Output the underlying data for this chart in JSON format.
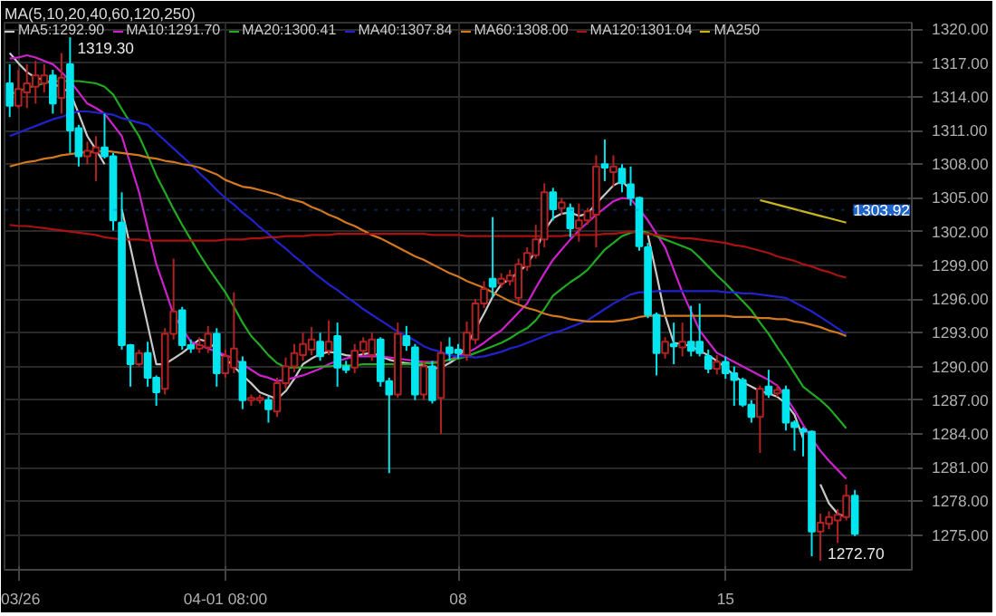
{
  "chart_data": {
    "type": "candlestick",
    "legend_title": "MA(5,10,20,40,60,120,250)",
    "categories": [
      null,
      "03/26",
      null,
      null,
      null,
      null,
      null,
      null,
      null,
      null,
      null,
      null,
      null,
      null,
      null,
      null,
      null,
      null,
      null,
      null,
      null,
      null,
      null,
      null,
      null,
      "04-01 08:00",
      null,
      null,
      null,
      null,
      null,
      null,
      null,
      null,
      null,
      null,
      null,
      null,
      null,
      null,
      null,
      null,
      null,
      null,
      null,
      null,
      null,
      null,
      null,
      null,
      null,
      null,
      "08",
      null,
      null,
      null,
      null,
      null,
      null,
      null,
      null,
      null,
      null,
      null,
      null,
      null,
      null,
      null,
      null,
      null,
      null,
      null,
      null,
      null,
      null,
      null,
      null,
      null,
      null,
      null,
      null,
      null,
      null,
      "15",
      null,
      null,
      null,
      null,
      null,
      null,
      null,
      null,
      null,
      null,
      null,
      null,
      null,
      null,
      null
    ],
    "ohlc": [
      [
        1315.2,
        1316.9,
        1312.2,
        1313.2
      ],
      [
        1313.2,
        1316.4,
        1313.0,
        1314.7
      ],
      [
        1314.4,
        1316.9,
        1313.0,
        1315.2
      ],
      [
        1314.9,
        1317.2,
        1313.4,
        1315.9
      ],
      [
        1315.2,
        1316.9,
        1314.4,
        1315.9
      ],
      [
        1315.9,
        1316.4,
        1312.5,
        1313.4
      ],
      [
        1313.9,
        1317.9,
        1312.5,
        1315.7
      ],
      [
        1316.9,
        1319.3,
        1309.0,
        1311.0
      ],
      [
        1311.2,
        1311.5,
        1307.8,
        1308.7
      ],
      [
        1308.7,
        1310.0,
        1308.0,
        1309.2
      ],
      [
        1309.0,
        1310.5,
        1306.5,
        1309.5
      ],
      [
        1309.5,
        1312.5,
        1308.5,
        1308.7
      ],
      [
        1308.7,
        1309.0,
        1302.1,
        1303.0
      ],
      [
        1302.8,
        1305.5,
        1291.5,
        1291.9
      ],
      [
        1291.9,
        1292.0,
        1288.2,
        1290.2
      ],
      [
        1290.2,
        1291.5,
        1290.0,
        1291.2
      ],
      [
        1291.2,
        1292.2,
        1288.2,
        1289.0
      ],
      [
        1289.0,
        1289.2,
        1286.5,
        1287.7
      ],
      [
        1288.0,
        1293.4,
        1287.5,
        1292.9
      ],
      [
        1292.9,
        1299.6,
        1292.4,
        1294.9
      ],
      [
        1295.0,
        1295.3,
        1291.5,
        1291.9
      ],
      [
        1291.9,
        1292.4,
        1291.2,
        1291.6
      ],
      [
        1291.6,
        1292.6,
        1291.2,
        1291.9
      ],
      [
        1291.7,
        1293.6,
        1291.2,
        1292.9
      ],
      [
        1292.9,
        1293.4,
        1288.2,
        1289.4
      ],
      [
        1289.4,
        1291.5,
        1289.0,
        1290.9
      ],
      [
        1289.9,
        1296.6,
        1289.4,
        1291.6
      ],
      [
        1290.4,
        1290.9,
        1286.2,
        1287.0
      ],
      [
        1287.0,
        1287.5,
        1286.5,
        1287.2
      ],
      [
        1287.0,
        1287.5,
        1286.7,
        1287.2
      ],
      [
        1287.0,
        1287.3,
        1285.0,
        1286.2
      ],
      [
        1286.0,
        1289.0,
        1285.5,
        1288.5
      ],
      [
        1288.5,
        1290.8,
        1288.0,
        1290.0
      ],
      [
        1290.0,
        1292.0,
        1289.5,
        1291.2
      ],
      [
        1291.0,
        1293.0,
        1290.5,
        1292.0
      ],
      [
        1291.5,
        1293.5,
        1291.0,
        1292.4
      ],
      [
        1292.2,
        1293.0,
        1290.5,
        1290.9
      ],
      [
        1291.4,
        1294.1,
        1291.0,
        1292.2
      ],
      [
        1292.7,
        1293.9,
        1288.2,
        1289.9
      ],
      [
        1290.0,
        1290.5,
        1289.4,
        1289.7
      ],
      [
        1289.9,
        1292.0,
        1289.4,
        1291.4
      ],
      [
        1291.4,
        1292.6,
        1291.0,
        1292.2
      ],
      [
        1291.0,
        1293.0,
        1290.5,
        1292.4
      ],
      [
        1292.4,
        1292.6,
        1288.2,
        1288.7
      ],
      [
        1288.7,
        1289.0,
        1280.5,
        1287.5
      ],
      [
        1287.5,
        1293.9,
        1287.2,
        1292.9
      ],
      [
        1292.7,
        1293.6,
        1291.4,
        1291.9
      ],
      [
        1291.7,
        1292.0,
        1287.0,
        1287.5
      ],
      [
        1287.5,
        1290.5,
        1287.0,
        1290.0
      ],
      [
        1290.0,
        1290.5,
        1286.7,
        1287.0
      ],
      [
        1287.2,
        1292.2,
        1284.0,
        1291.2
      ],
      [
        1291.7,
        1292.6,
        1290.5,
        1291.2
      ],
      [
        1291.5,
        1292.0,
        1290.7,
        1291.2
      ],
      [
        1291.0,
        1294.0,
        1290.5,
        1293.0
      ],
      [
        1292.4,
        1296.0,
        1292.0,
        1295.6
      ],
      [
        1295.6,
        1297.6,
        1295.2,
        1296.9
      ],
      [
        1297.8,
        1303.3,
        1296.1,
        1297.1
      ],
      [
        1297.4,
        1298.3,
        1297.0,
        1297.8
      ],
      [
        1297.6,
        1298.6,
        1297.2,
        1298.1
      ],
      [
        1296.1,
        1299.6,
        1295.6,
        1299.1
      ],
      [
        1298.9,
        1300.6,
        1298.5,
        1300.1
      ],
      [
        1299.9,
        1302.6,
        1299.6,
        1301.3
      ],
      [
        1301.3,
        1306.3,
        1300.6,
        1305.5
      ],
      [
        1305.5,
        1305.9,
        1303.0,
        1304.0
      ],
      [
        1304.1,
        1305.0,
        1303.5,
        1304.6
      ],
      [
        1304.1,
        1304.5,
        1301.5,
        1302.3
      ],
      [
        1302.3,
        1304.5,
        1301.1,
        1303.0
      ],
      [
        1303.0,
        1304.1,
        1302.6,
        1303.8
      ],
      [
        1303.5,
        1308.8,
        1300.6,
        1307.8
      ],
      [
        1308.0,
        1310.2,
        1306.5,
        1307.7
      ],
      [
        1307.3,
        1308.8,
        1306.0,
        1307.8
      ],
      [
        1307.6,
        1308.0,
        1305.5,
        1306.3
      ],
      [
        1306.2,
        1307.8,
        1304.3,
        1305.0
      ],
      [
        1305.0,
        1305.1,
        1300.3,
        1300.7
      ],
      [
        1300.6,
        1301.0,
        1294.3,
        1294.6
      ],
      [
        1294.6,
        1294.8,
        1289.2,
        1291.2
      ],
      [
        1291.2,
        1292.6,
        1290.7,
        1292.2
      ],
      [
        1292.0,
        1293.9,
        1290.2,
        1291.8
      ],
      [
        1291.7,
        1293.9,
        1290.9,
        1292.2
      ],
      [
        1292.2,
        1295.4,
        1290.9,
        1291.4
      ],
      [
        1292.2,
        1295.6,
        1290.9,
        1291.2
      ],
      [
        1290.9,
        1291.5,
        1289.4,
        1289.8
      ],
      [
        1289.8,
        1291.0,
        1289.3,
        1290.4
      ],
      [
        1290.4,
        1290.9,
        1288.9,
        1289.4
      ],
      [
        1289.4,
        1290.0,
        1286.5,
        1288.8
      ],
      [
        1288.8,
        1289.0,
        1286.4,
        1286.6
      ],
      [
        1286.6,
        1287.0,
        1285.0,
        1285.5
      ],
      [
        1285.5,
        1288.3,
        1282.3,
        1288.0
      ],
      [
        1288.2,
        1289.7,
        1287.2,
        1287.5
      ],
      [
        1287.6,
        1288.4,
        1287.3,
        1287.9
      ],
      [
        1287.9,
        1288.3,
        1284.3,
        1285.0
      ],
      [
        1285.0,
        1285.2,
        1282.5,
        1284.6
      ],
      [
        1284.4,
        1284.6,
        1282.0,
        1284.2
      ],
      [
        1284.2,
        1284.3,
        1273.1,
        1275.3
      ],
      [
        1275.3,
        1276.9,
        1272.7,
        1276.1
      ],
      [
        1276.0,
        1277.1,
        1275.5,
        1276.6
      ],
      [
        1276.3,
        1277.3,
        1274.3,
        1276.8
      ],
      [
        1276.6,
        1279.5,
        1276.3,
        1278.5
      ],
      [
        1278.5,
        1279.0,
        1274.9,
        1275.1
      ]
    ],
    "series": [
      {
        "name": "MA5:1292.90",
        "type": "line",
        "color": "#c8c8c8",
        "values": [
          1317.9,
          1317.0,
          1316.2,
          1315.7,
          1315.5,
          1315.2,
          1314.8,
          1314.4,
          1312.5,
          1310.5,
          1309.3,
          1308.0,
          null,
          1304.0,
          1300.6,
          1297.1,
          1293.7,
          1290.2,
          1290.2,
          1290.7,
          1291.2,
          1291.8,
          1292.4,
          1292.2,
          1291.5,
          1290.7,
          1290.0,
          1289.2,
          1288.5,
          1287.7,
          1287.4,
          1287.1,
          1287.8,
          1288.9,
          1290.2,
          1290.7,
          1291.1,
          1291.3,
          1291.2,
          1291.0,
          1290.9,
          1291.1,
          1291.2,
          1290.9,
          1290.6,
          1290.4,
          1290.3,
          1290.2,
          1290.1,
          1289.8,
          1289.9,
          1290.3,
          1290.8,
          1291.9,
          1293.3,
          1294.7,
          1296.2,
          1297.3,
          1297.8,
          1298.4,
          1299.1,
          1300.3,
          1302.1,
          1303.2,
          1303.6,
          1303.7,
          1303.4,
          1303.6,
          1304.5,
          1305.3,
          1306.1,
          1306.5,
          1305.7,
          null,
          1301.7,
          1298.2,
          1294.5,
          1292.1,
          1292.0,
          1291.8,
          1291.4,
          1291.0,
          1290.5,
          1289.9,
          1289.2,
          1288.6,
          1288.2,
          1287.8,
          1287.6,
          1287.3,
          1286.7,
          1285.7,
          1283.6,
          null,
          1279.5,
          1277.8,
          1276.9,
          1276.6,
          null
        ]
      },
      {
        "name": "MA10:1291.70",
        "type": "line",
        "color": "#cc22cc",
        "values": [
          1317.4,
          1317.5,
          1317.7,
          1317.5,
          1317.2,
          1316.9,
          1316.2,
          1315.4,
          1314.4,
          1313.4,
          1313.0,
          1312.5,
          1311.5,
          1310.5,
          1308.0,
          1305.5,
          1302.3,
          1299.1,
          1296.9,
          1294.6,
          1293.4,
          1292.2,
          1291.9,
          1291.6,
          1291.3,
          1291.0,
          1290.7,
          1290.2,
          1289.7,
          1289.2,
          1289.0,
          1288.7,
          1288.8,
          1289.0,
          1289.2,
          1289.5,
          1289.8,
          1290.2,
          1290.5,
          1290.7,
          1290.9,
          1290.9,
          1290.9,
          1290.9,
          1290.8,
          1290.7,
          1290.6,
          1290.5,
          1290.4,
          1290.4,
          1290.4,
          1290.6,
          1290.9,
          1291.2,
          1291.6,
          1292.1,
          1292.7,
          1293.2,
          1294.0,
          1294.8,
          1295.6,
          1297.0,
          1298.3,
          1299.5,
          1300.4,
          1301.3,
          1302.1,
          1302.8,
          1303.5,
          1304.1,
          1304.7,
          1305.0,
          1304.9,
          1304.0,
          1303.0,
          1301.8,
          1300.6,
          1298.6,
          1296.6,
          1294.9,
          1293.2,
          1292.2,
          1291.2,
          1290.8,
          1290.4,
          1290.0,
          1289.6,
          1289.2,
          1288.8,
          1288.3,
          1287.3,
          1286.1,
          1284.8,
          1283.6,
          1282.5,
          1281.6,
          1280.8,
          1280.0,
          null
        ]
      },
      {
        "name": "MA20:1300.41",
        "type": "line",
        "color": "#1faa1f",
        "values": [
          1314.2,
          1314.5,
          1314.8,
          1315.0,
          1315.2,
          1315.4,
          1315.4,
          1315.4,
          1315.4,
          1315.3,
          1315.2,
          1314.9,
          1314.2,
          1312.9,
          1311.7,
          1310.5,
          1308.8,
          1307.0,
          1305.5,
          1304.0,
          1302.6,
          1301.3,
          1300.0,
          1298.8,
          1297.7,
          1296.6,
          1295.3,
          1293.9,
          1292.7,
          1291.9,
          1291.0,
          1290.3,
          1289.9,
          1289.9,
          1289.9,
          1289.9,
          1290.0,
          1290.0,
          1290.1,
          1290.1,
          1290.1,
          1290.2,
          1290.2,
          1290.2,
          1290.2,
          1290.2,
          1290.2,
          1290.2,
          1290.3,
          1290.3,
          1290.4,
          1290.6,
          1290.7,
          1290.9,
          1291.2,
          1291.5,
          1291.8,
          1292.1,
          1292.5,
          1293.0,
          1293.4,
          1294.1,
          1295.1,
          1296.3,
          1296.9,
          1297.5,
          1298.0,
          1298.6,
          1299.5,
          1300.4,
          1301.0,
          1301.6,
          1301.9,
          1302.1,
          1301.9,
          1301.6,
          1301.3,
          1301.0,
          1300.7,
          1300.4,
          1299.7,
          1298.9,
          1298.1,
          1297.4,
          1296.6,
          1295.8,
          1295.0,
          1293.9,
          1292.9,
          1291.7,
          1290.6,
          1289.4,
          1288.2,
          1287.6,
          1287.0,
          1286.3,
          1285.4,
          1284.5,
          null
        ]
      },
      {
        "name": "MA40:1307.84",
        "type": "line",
        "color": "#2222cc",
        "values": [
          1310.5,
          1310.8,
          1311.1,
          1311.4,
          1311.7,
          1312.0,
          1312.2,
          1312.5,
          1312.7,
          1312.7,
          1312.6,
          1312.5,
          1312.4,
          1312.1,
          1311.9,
          1311.7,
          1311.5,
          1310.8,
          1310.1,
          1309.4,
          1308.7,
          1308.0,
          1307.2,
          1306.5,
          1305.7,
          1305.0,
          1304.4,
          1303.7,
          1303.1,
          1302.4,
          1301.8,
          1301.1,
          1300.5,
          1299.8,
          1299.2,
          1298.5,
          1297.9,
          1297.3,
          1296.8,
          1296.2,
          1295.7,
          1295.1,
          1294.6,
          1294.1,
          1293.6,
          1293.1,
          1292.7,
          1292.3,
          1291.8,
          1291.5,
          1291.3,
          1291.0,
          1290.9,
          1290.9,
          1290.8,
          1290.9,
          1291.1,
          1291.3,
          1291.6,
          1291.8,
          1292.1,
          1292.4,
          1292.7,
          1293.0,
          1293.2,
          1293.5,
          1293.8,
          1294.1,
          1294.6,
          1295.1,
          1295.6,
          1296.0,
          1296.4,
          1296.6,
          1296.6,
          1296.7,
          1296.7,
          1296.7,
          1296.7,
          1296.7,
          1296.7,
          1296.7,
          1296.7,
          1296.6,
          1296.6,
          1296.5,
          1296.5,
          1296.4,
          1296.3,
          1296.2,
          1296.1,
          1295.7,
          1295.3,
          1294.9,
          1294.4,
          1293.9,
          1293.4,
          1292.9,
          null
        ]
      },
      {
        "name": "MA60:1308.00",
        "type": "line",
        "color": "#d2781e",
        "values": [
          1307.8,
          1308.0,
          1308.2,
          1308.3,
          1308.5,
          1308.6,
          1308.8,
          1308.9,
          1309.0,
          1309.1,
          1309.1,
          1309.2,
          1309.1,
          1309.0,
          1308.9,
          1308.8,
          1308.6,
          1308.5,
          1308.3,
          1308.2,
          1308.0,
          1307.9,
          1307.7,
          1307.4,
          1307.1,
          1306.6,
          1306.3,
          1306.0,
          1305.9,
          1305.7,
          1305.5,
          1305.3,
          1305.0,
          1304.8,
          1304.6,
          1304.2,
          1303.9,
          1303.5,
          1303.2,
          1302.8,
          1302.5,
          1302.1,
          1301.7,
          1301.4,
          1301.0,
          1300.6,
          1300.2,
          1299.8,
          1299.5,
          1299.1,
          1298.7,
          1298.3,
          1298.0,
          1297.6,
          1297.3,
          1297.0,
          1296.6,
          1296.2,
          1295.8,
          1295.5,
          1295.2,
          1295.0,
          1294.7,
          1294.5,
          1294.4,
          1294.2,
          1294.1,
          1294.0,
          1294.0,
          1294.0,
          1294.0,
          1294.1,
          1294.2,
          1294.4,
          1294.5,
          1294.5,
          1294.5,
          1294.5,
          1294.5,
          1294.5,
          1294.5,
          1294.5,
          1294.5,
          1294.5,
          1294.4,
          1294.4,
          1294.4,
          1294.3,
          1294.3,
          1294.2,
          1294.2,
          1294.0,
          1293.9,
          1293.7,
          1293.5,
          1293.2,
          1293.0,
          1292.7,
          null
        ]
      },
      {
        "name": "MA120:1301.04",
        "type": "line",
        "color": "#aa1111",
        "values": [
          1302.6,
          1302.5,
          1302.5,
          1302.4,
          1302.3,
          1302.2,
          1302.1,
          1302.0,
          1301.9,
          1301.8,
          1301.7,
          1301.5,
          1301.4,
          1301.3,
          1301.3,
          1301.3,
          1301.2,
          1301.2,
          1301.2,
          1301.2,
          1301.2,
          1301.2,
          1301.2,
          1301.2,
          1301.2,
          1301.3,
          1301.3,
          1301.3,
          1301.4,
          1301.4,
          1301.5,
          1301.5,
          1301.6,
          1301.6,
          1301.6,
          1301.7,
          1301.7,
          1301.7,
          1301.8,
          1301.8,
          1301.8,
          1301.8,
          1301.8,
          1301.8,
          1301.8,
          1301.8,
          1301.8,
          1301.8,
          1301.8,
          1301.7,
          1301.7,
          1301.7,
          1301.7,
          1301.6,
          1301.6,
          1301.6,
          1301.6,
          1301.6,
          1301.6,
          1301.6,
          1301.6,
          1301.6,
          1301.6,
          1301.6,
          1301.6,
          1301.7,
          1301.7,
          1301.7,
          1301.7,
          1301.8,
          1301.8,
          1301.9,
          1302.0,
          1301.9,
          1301.8,
          1301.7,
          1301.6,
          1301.5,
          1301.4,
          1301.4,
          1301.3,
          1301.2,
          1301.1,
          1301.0,
          1300.8,
          1300.7,
          1300.5,
          1300.3,
          1300.1,
          1299.8,
          1299.6,
          1299.4,
          1299.1,
          1298.9,
          1298.6,
          1298.4,
          1298.1,
          1297.9,
          null
        ]
      },
      {
        "name": "MA250",
        "type": "line",
        "color": "#c8b41e",
        "values": [
          null,
          null,
          null,
          null,
          null,
          null,
          null,
          null,
          null,
          null,
          null,
          null,
          null,
          null,
          null,
          null,
          null,
          null,
          null,
          null,
          null,
          null,
          null,
          null,
          null,
          null,
          null,
          null,
          null,
          null,
          null,
          null,
          null,
          null,
          null,
          null,
          null,
          null,
          null,
          null,
          null,
          null,
          null,
          null,
          null,
          null,
          null,
          null,
          null,
          null,
          null,
          null,
          null,
          null,
          null,
          null,
          null,
          null,
          null,
          null,
          null,
          null,
          null,
          null,
          null,
          null,
          null,
          null,
          null,
          null,
          null,
          null,
          null,
          null,
          null,
          null,
          null,
          null,
          null,
          null,
          null,
          null,
          null,
          null,
          null,
          null,
          null,
          1304.8,
          1304.6,
          1304.4,
          1304.2,
          1304.0,
          1303.8,
          1303.6,
          1303.4,
          1303.2,
          1303.0,
          1302.8,
          null
        ]
      }
    ],
    "ylim": [
      1271.9,
      1320.6
    ],
    "yticks": [
      {
        "value": 1275,
        "label": "1275.00"
      },
      {
        "value": 1278,
        "label": "1278.00"
      },
      {
        "value": 1281,
        "label": "1281.00"
      },
      {
        "value": 1284,
        "label": "1284.00"
      },
      {
        "value": 1287,
        "label": "1287.00"
      },
      {
        "value": 1290,
        "label": "1290.00"
      },
      {
        "value": 1293,
        "label": "1293.00"
      },
      {
        "value": 1296,
        "label": "1296.00"
      },
      {
        "value": 1299,
        "label": "1299.00"
      },
      {
        "value": 1302,
        "label": "1302.00"
      },
      {
        "value": 1305,
        "label": "1305.00"
      },
      {
        "value": 1308,
        "label": "1308.00"
      },
      {
        "value": 1311,
        "label": "1311.00"
      },
      {
        "value": 1314,
        "label": "1314.00"
      },
      {
        "value": 1317,
        "label": "1317.00"
      },
      {
        "value": 1320,
        "label": "1320.00"
      }
    ],
    "annotations": [
      "1319.30",
      "1272.70"
    ],
    "ref_lines": [
      {
        "axis": "y",
        "value": 1303.92,
        "label": "1303.92",
        "color": "#1e64c8"
      }
    ],
    "grid": true,
    "legend": "top left"
  }
}
